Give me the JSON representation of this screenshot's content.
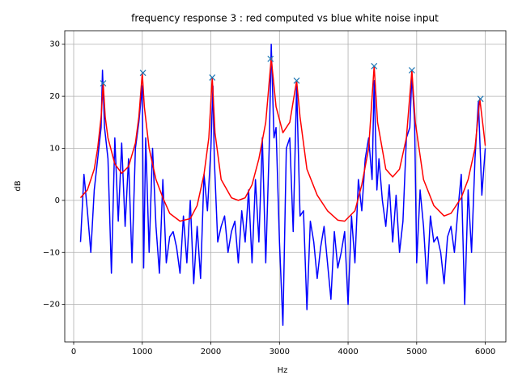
{
  "chart_data": {
    "type": "line",
    "title": "frequency response 3 : red computed vs blue white noise input",
    "xlabel": "Hz",
    "ylabel": "dB",
    "xlim": [
      -130,
      6300
    ],
    "ylim": [
      -27.2,
      32.6
    ],
    "xticks": [
      0,
      1000,
      2000,
      3000,
      4000,
      5000,
      6000
    ],
    "yticks": [
      {
        "value": -20,
        "label": "−20"
      },
      {
        "value": -10,
        "label": "−10"
      },
      0,
      10,
      20,
      30
    ],
    "grid": true,
    "series": [
      {
        "color": "#0000ff",
        "x": [
          100,
          150,
          200,
          250,
          300,
          350,
          400,
          420,
          450,
          500,
          550,
          600,
          650,
          700,
          750,
          800,
          850,
          900,
          950,
          1000,
          1020,
          1050,
          1100,
          1150,
          1200,
          1250,
          1300,
          1350,
          1400,
          1450,
          1500,
          1550,
          1600,
          1650,
          1700,
          1750,
          1800,
          1850,
          1900,
          1950,
          2000,
          2030,
          2050,
          2100,
          2150,
          2200,
          2250,
          2300,
          2350,
          2400,
          2450,
          2500,
          2550,
          2600,
          2650,
          2700,
          2750,
          2800,
          2850,
          2880,
          2920,
          2950,
          3000,
          3050,
          3100,
          3150,
          3200,
          3250,
          3300,
          3350,
          3400,
          3450,
          3500,
          3550,
          3600,
          3650,
          3700,
          3750,
          3800,
          3850,
          3900,
          3950,
          4000,
          4050,
          4100,
          4150,
          4200,
          4250,
          4300,
          4350,
          4380,
          4420,
          4450,
          4500,
          4550,
          4600,
          4650,
          4700,
          4750,
          4800,
          4850,
          4900,
          4930,
          4970,
          5000,
          5050,
          5100,
          5150,
          5200,
          5250,
          5300,
          5350,
          5400,
          5450,
          5500,
          5550,
          5600,
          5650,
          5700,
          5750,
          5800,
          5850,
          5900,
          5950,
          6000
        ],
        "values": [
          -8,
          5,
          -2,
          -10,
          2,
          8,
          14,
          25,
          14,
          8,
          -14,
          12,
          -4,
          11,
          -5,
          8,
          -12,
          10,
          15,
          22,
          -13,
          12,
          -10,
          10,
          -5,
          -14,
          4,
          -12,
          -7,
          -6,
          -9,
          -14,
          -3,
          -12,
          0,
          -16,
          -5,
          -15,
          5,
          -2,
          10,
          22,
          8,
          -8,
          -5,
          -3,
          -10,
          -6,
          -4,
          -12,
          -2,
          -8,
          2,
          -12,
          4,
          -8,
          12,
          -12,
          10,
          30,
          12,
          14,
          -8,
          -24,
          10,
          12,
          -6,
          22,
          -3,
          -2,
          -21,
          -4,
          -8,
          -15,
          -9,
          -5,
          -12,
          -19,
          -6,
          -13,
          -10,
          -6,
          -20,
          -3,
          -12,
          4,
          -2,
          8,
          12,
          4,
          23,
          2,
          8,
          0,
          -5,
          3,
          -8,
          1,
          -10,
          -4,
          12,
          14,
          24,
          15,
          -12,
          2,
          -5,
          -16,
          -3,
          -8,
          -7,
          -10,
          -16,
          -7,
          -5,
          -10,
          -2,
          5,
          -20,
          2,
          -10,
          8,
          19,
          1,
          10
        ]
      },
      {
        "color": "#ff0000",
        "x": [
          100,
          200,
          300,
          350,
          400,
          430,
          460,
          500,
          600,
          700,
          800,
          900,
          950,
          1000,
          1030,
          1100,
          1200,
          1300,
          1400,
          1550,
          1700,
          1800,
          1900,
          1970,
          2020,
          2060,
          2150,
          2300,
          2400,
          2500,
          2600,
          2700,
          2800,
          2880,
          2950,
          3050,
          3150,
          3250,
          3300,
          3400,
          3550,
          3700,
          3850,
          3950,
          4100,
          4200,
          4300,
          4380,
          4430,
          4550,
          4650,
          4750,
          4850,
          4930,
          4980,
          5100,
          5250,
          5400,
          5500,
          5650,
          5750,
          5850,
          5920,
          5970,
          6000
        ],
        "values": [
          0.5,
          2,
          6,
          10,
          16,
          22.5,
          16,
          12,
          7,
          5.2,
          6.5,
          11,
          16,
          24.5,
          18,
          10,
          4,
          0.5,
          -2.5,
          -4,
          -3.5,
          -1,
          5,
          12,
          23.6,
          13,
          4,
          0.5,
          0,
          0.5,
          3,
          8,
          15,
          27.3,
          18,
          13,
          15,
          23,
          16,
          6,
          1,
          -2,
          -3.8,
          -4,
          -2,
          3,
          10,
          25.8,
          15,
          6,
          4.5,
          6,
          12,
          25,
          15,
          4,
          -1,
          -3,
          -2.5,
          0.5,
          4,
          10,
          19.5,
          14,
          10.5
        ]
      },
      {
        "color": "#1f77b4",
        "marker": "x",
        "x": [
          430,
          1010,
          2020,
          2870,
          3250,
          4380,
          4930,
          5930
        ],
        "values": [
          22.5,
          24.5,
          23.6,
          27.2,
          23,
          25.8,
          25,
          19.5
        ]
      }
    ]
  }
}
